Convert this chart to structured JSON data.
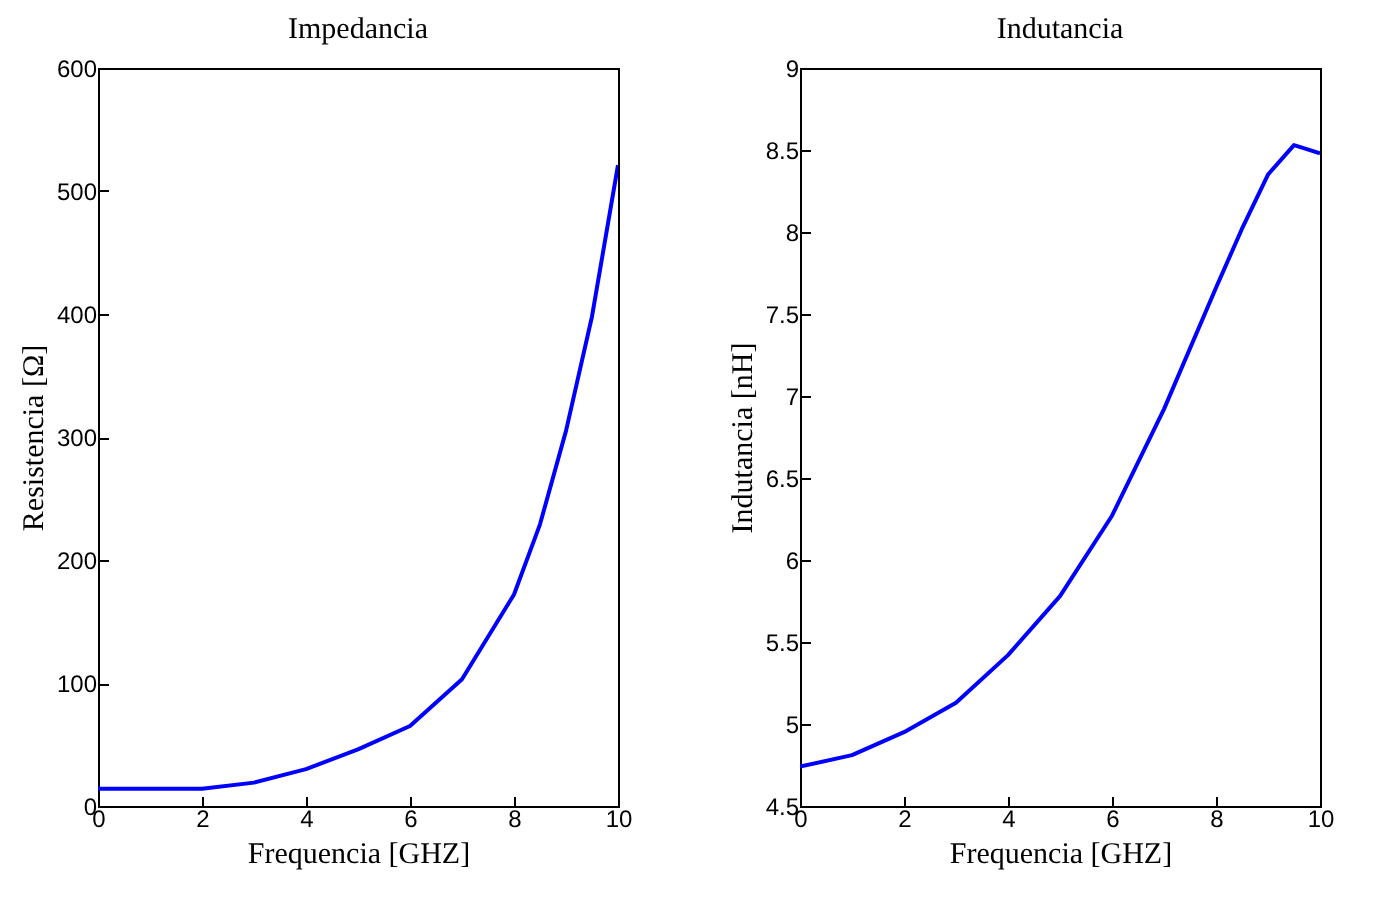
{
  "chart_data": [
    {
      "type": "line",
      "title": "Impedancia",
      "xlabel": "Frequencia [GHZ]",
      "ylabel": "Resistencia [Ω]",
      "x": [
        0,
        1,
        2,
        3,
        4,
        5,
        6,
        7,
        8,
        8.5,
        9,
        9.5,
        10
      ],
      "series": [
        {
          "color": "#0000ff",
          "values": [
            14,
            14,
            14,
            19,
            30,
            46,
            65,
            103,
            172,
            229,
            305,
            398,
            521
          ]
        }
      ],
      "xlim": [
        0,
        10
      ],
      "xticks": [
        0,
        2,
        4,
        6,
        8,
        10
      ],
      "ylim": [
        0,
        600
      ],
      "yticks": [
        0,
        100,
        200,
        300,
        400,
        500,
        600
      ]
    },
    {
      "type": "line",
      "title": "Indutancia",
      "xlabel": "Frequencia [GHZ]",
      "ylabel": "Indutancia [nH]",
      "x": [
        0,
        1,
        2,
        3,
        4,
        5,
        6,
        7,
        8,
        8.5,
        9,
        9.5,
        9.7,
        10
      ],
      "series": [
        {
          "color": "#0000ff",
          "values": [
            4.74,
            4.81,
            4.95,
            5.13,
            5.42,
            5.78,
            6.27,
            6.92,
            7.66,
            8.02,
            8.35,
            8.53,
            8.51,
            8.48
          ]
        }
      ],
      "xlim": [
        0,
        10
      ],
      "xticks": [
        0,
        2,
        4,
        6,
        8,
        10
      ],
      "ylim": [
        4.5,
        9
      ],
      "yticks": [
        4.5,
        5,
        5.5,
        6,
        6.5,
        7,
        7.5,
        8,
        8.5,
        9
      ]
    }
  ]
}
